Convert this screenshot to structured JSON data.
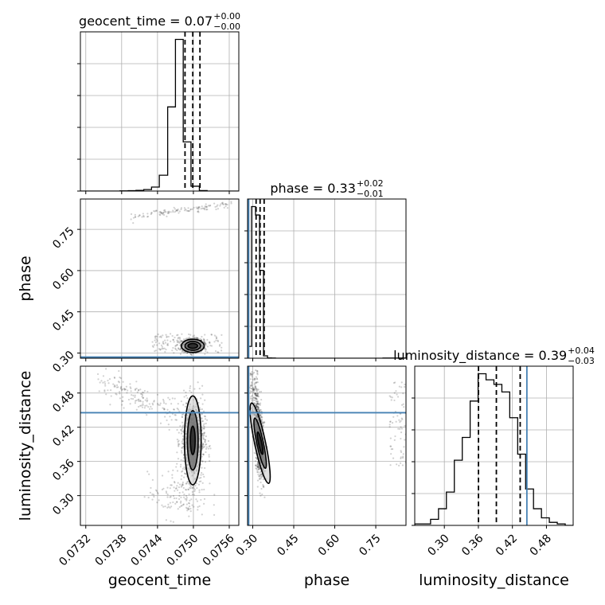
{
  "chart_data": {
    "type": "corner",
    "parameters": [
      "geocent_time",
      "phase",
      "luminosity_distance"
    ],
    "colors": {
      "truth": "#4682b4",
      "hist": "#000000",
      "grid": "#b0b0b0"
    },
    "grid": true,
    "titles": [
      {
        "param": "geocent_time",
        "text": "geocent_time = 0.07",
        "sup": "+0.00",
        "sub": "−0.00"
      },
      {
        "param": "phase",
        "text": "phase = 0.33",
        "sup": "+0.02",
        "sub": "−0.01"
      },
      {
        "param": "luminosity_distance",
        "text": "luminosity_distance = 0.39",
        "sup": "+0.04",
        "sub": "−0.03"
      }
    ],
    "axis_labels": {
      "x": [
        "geocent_time",
        "phase",
        "luminosity_distance"
      ],
      "y": [
        "phase",
        "luminosity_distance"
      ]
    },
    "ranges": {
      "geocent_time": [
        0.07311,
        0.07576
      ],
      "phase": [
        0.2811,
        0.8605
      ],
      "luminosity_distance": [
        0.2478,
        0.5271
      ]
    },
    "ticks": {
      "geocent_time": [
        "0.0732",
        "0.0738",
        "0.0744",
        "0.0750",
        "0.0756"
      ],
      "phase": [
        "0.30",
        "0.45",
        "0.60",
        "0.75"
      ],
      "luminosity_distance": [
        "0.30",
        "0.36",
        "0.42",
        "0.48"
      ]
    },
    "ticks_numeric": {
      "geocent_time": [
        0.0732,
        0.0738,
        0.0744,
        0.075,
        0.0756
      ],
      "phase": [
        0.3,
        0.45,
        0.6,
        0.75
      ],
      "luminosity_distance": [
        0.3,
        0.36,
        0.42,
        0.48
      ]
    },
    "truths": {
      "phase": 0.2852,
      "luminosity_distance": 0.4455
    },
    "quantiles": {
      "geocent_time": [
        0.07486,
        0.07499,
        0.07511
      ],
      "phase": [
        0.3123,
        0.3269,
        0.3417
      ],
      "luminosity_distance": [
        0.3602,
        0.3917,
        0.4337
      ]
    },
    "histograms": {
      "geocent_time": {
        "edges": [
          0.07311,
          0.07324,
          0.07338,
          0.07351,
          0.07364,
          0.07377,
          0.07391,
          0.07404,
          0.07417,
          0.0743,
          0.07443,
          0.07457,
          0.0747,
          0.07483,
          0.07496,
          0.0751,
          0.07523,
          0.07536,
          0.07549,
          0.07562,
          0.07576
        ],
        "counts": [
          0,
          0,
          0,
          0,
          0,
          1,
          2,
          4,
          9,
          24,
          95,
          505,
          910,
          295,
          29,
          3,
          0,
          0,
          0,
          0
        ]
      },
      "phase": {
        "edges": [
          0.2811,
          0.2957,
          0.3102,
          0.3248,
          0.3394,
          0.354,
          0.3685,
          0.3831,
          0.3976,
          0.4122,
          0.4268,
          0.4413,
          0.4559,
          0.4704,
          0.485,
          0.4996,
          0.5141,
          0.5287,
          0.5432,
          0.5578,
          0.5724,
          0.5869,
          0.6015,
          0.616,
          0.6306,
          0.6452,
          0.6597,
          0.6743,
          0.6888,
          0.7034,
          0.718,
          0.7325,
          0.7471,
          0.7616,
          0.7762,
          0.7908,
          0.8053,
          0.8199,
          0.8344,
          0.849,
          0.8605
        ],
        "counts": [
          75,
          958,
          905,
          555,
          15,
          2,
          1,
          0,
          0,
          0,
          0,
          0,
          0,
          0,
          0,
          0,
          0,
          0,
          0,
          0,
          0,
          0,
          0,
          0,
          0,
          0,
          0,
          0,
          0,
          0,
          0,
          0,
          0,
          0,
          1,
          1,
          1,
          1,
          1,
          1
        ]
      },
      "luminosity_distance": {
        "edges": [
          0.2478,
          0.2618,
          0.2757,
          0.2897,
          0.3036,
          0.3176,
          0.3316,
          0.3455,
          0.3595,
          0.3735,
          0.3874,
          0.4014,
          0.4153,
          0.4293,
          0.4433,
          0.4572,
          0.4712,
          0.4851,
          0.4991,
          0.5131,
          0.5271
        ],
        "counts": [
          1,
          1,
          4,
          11,
          22,
          43,
          58,
          82,
          100,
          96,
          93,
          88,
          71,
          47,
          24,
          11,
          5,
          2,
          1,
          0
        ]
      }
    }
  }
}
